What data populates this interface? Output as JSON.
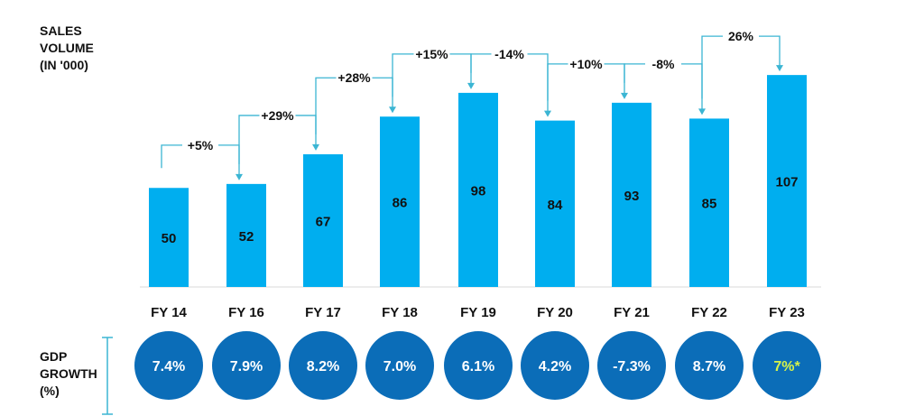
{
  "chart_data": {
    "type": "bar",
    "ylabel": "SALES\nVOLUME\n(IN '000)",
    "categories": [
      "FY 14",
      "FY 16",
      "FY 17",
      "FY 18",
      "FY 19",
      "FY 20",
      "FY 21",
      "FY 22",
      "FY 23"
    ],
    "values": [
      50,
      52,
      67,
      86,
      98,
      84,
      93,
      85,
      107
    ],
    "value_labels": [
      "50",
      "52",
      "67",
      "86",
      "98",
      "84",
      "93",
      "85",
      "107"
    ],
    "growth_labels": [
      "+5%",
      "+29%",
      "+28%",
      "+15%",
      "-14%",
      "+10%",
      "-8%",
      "26%"
    ],
    "bar_color": "#00aeef",
    "arrow_color": "#3bb5d3"
  },
  "gdp": {
    "label": "GDP\nGROWTH\n(%)",
    "values": [
      "7.4%",
      "7.9%",
      "8.2%",
      "7.0%",
      "6.1%",
      "4.2%",
      "-7.3%",
      "8.7%",
      "7%*"
    ],
    "circle_color": "#0b6db8",
    "text_color": "#ffffff",
    "highlight_index": 8,
    "highlight_color": "#d7f24a",
    "bracket_color": "#3bb5d3"
  }
}
